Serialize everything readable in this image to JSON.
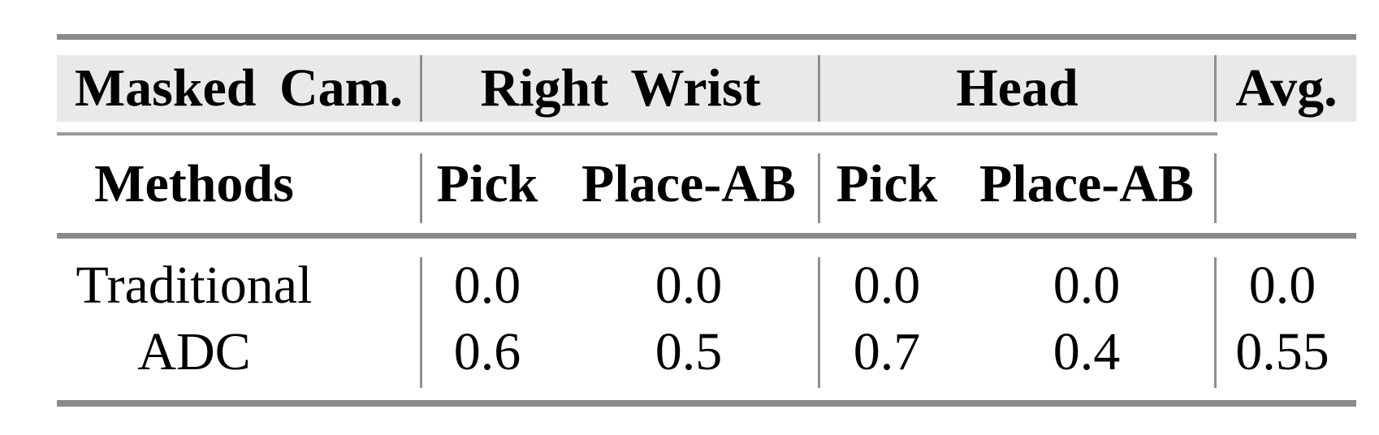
{
  "figure": {
    "kind": "paper-results-table",
    "colors": {
      "background": "#ffffff",
      "thick_rule": "#8a8a8a",
      "thin_rule": "#9a9a9a",
      "divider": "#8f8f8f",
      "header_band": "#e9e9e9",
      "text": "#000000"
    }
  },
  "table": {
    "header_row1": {
      "masked_cam": "Masked Cam.",
      "right_wrist": "Right Wrist",
      "head": "Head",
      "avg": "Avg."
    },
    "header_row2": {
      "methods": "Methods",
      "rw_pick": "Pick",
      "rw_place": "Place-AB",
      "head_pick": "Pick",
      "head_place": "Place-AB"
    },
    "rows": [
      {
        "method": "Traditional",
        "rw_pick": "0.0",
        "rw_place": "0.0",
        "head_pick": "0.0",
        "head_place": "0.0",
        "avg": "0.0"
      },
      {
        "method": "ADC",
        "rw_pick": "0.6",
        "rw_place": "0.5",
        "head_pick": "0.7",
        "head_place": "0.4",
        "avg": "0.55"
      }
    ]
  },
  "chart_data": {
    "type": "table",
    "columns": [
      "Masked Cam. Methods",
      "Right Wrist Pick",
      "Right Wrist Place-AB",
      "Head Pick",
      "Head Place-AB",
      "Avg."
    ],
    "rows": [
      [
        "Traditional",
        0.0,
        0.0,
        0.0,
        0.0,
        0.0
      ],
      [
        "ADC",
        0.6,
        0.5,
        0.7,
        0.4,
        0.55
      ]
    ]
  }
}
